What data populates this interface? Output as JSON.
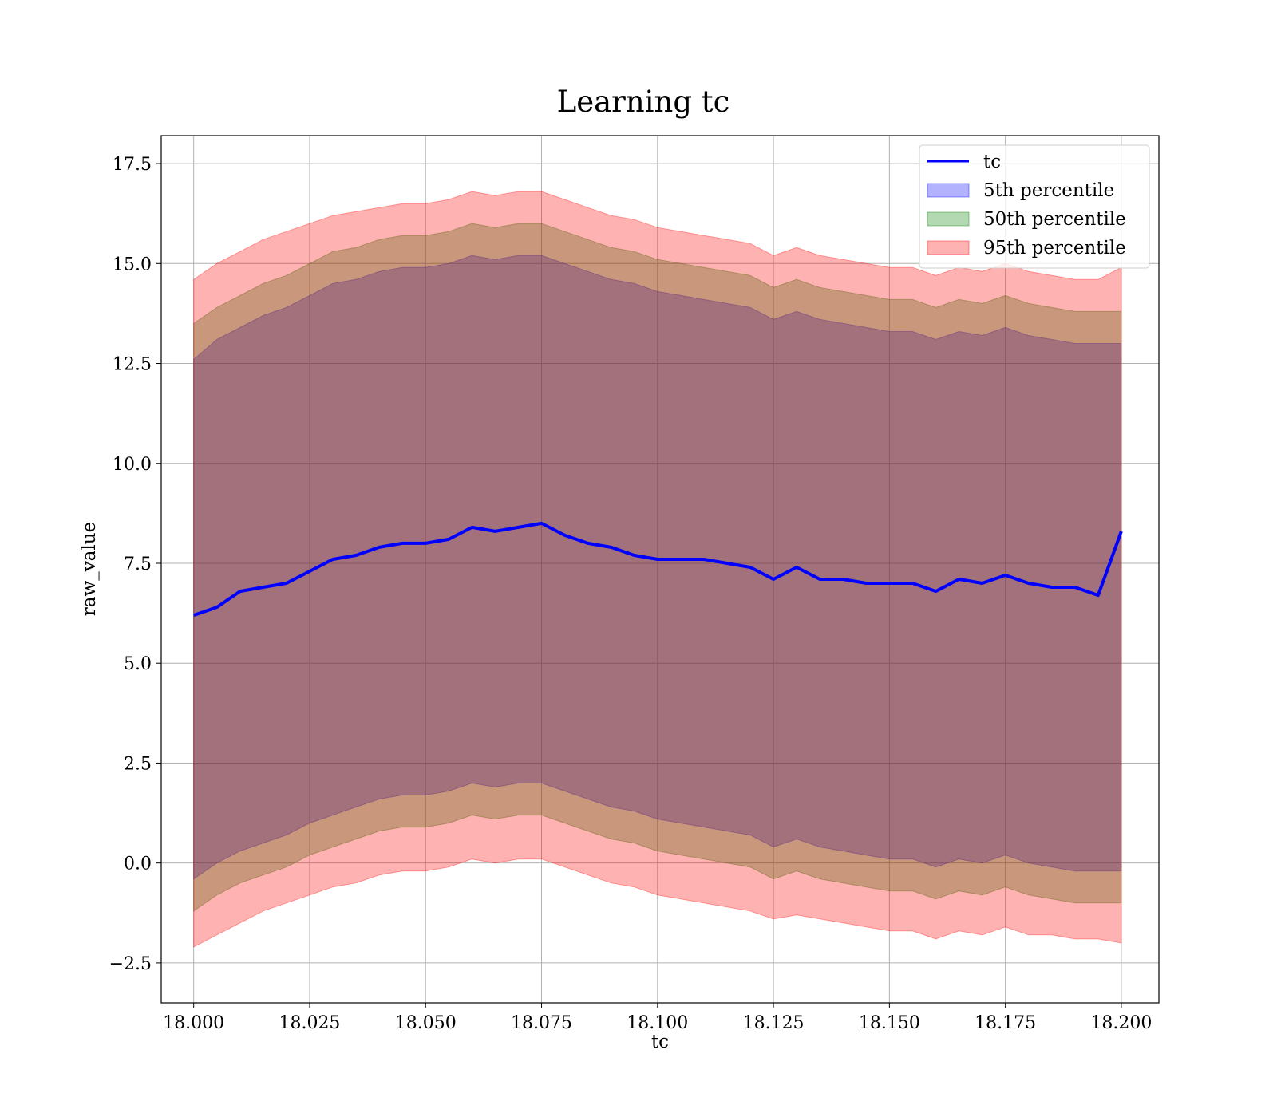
{
  "chart_data": {
    "type": "area",
    "title": "Learning tc",
    "xlabel": "tc",
    "ylabel": "raw_value",
    "xlim": [
      17.993,
      18.2081
    ],
    "ylim": [
      -3.5,
      18.2
    ],
    "xticks": [
      18.0,
      18.025,
      18.05,
      18.075,
      18.1,
      18.125,
      18.15,
      18.175,
      18.2
    ],
    "xtick_labels": [
      "18.000",
      "18.025",
      "18.050",
      "18.075",
      "18.100",
      "18.125",
      "18.150",
      "18.175",
      "18.200"
    ],
    "yticks": [
      -2.5,
      0.0,
      2.5,
      5.0,
      7.5,
      10.0,
      12.5,
      15.0,
      17.5
    ],
    "ytick_labels": [
      "−2.5",
      "0.0",
      "2.5",
      "5.0",
      "7.5",
      "10.0",
      "12.5",
      "15.0",
      "17.5"
    ],
    "grid": true,
    "legend_position": "top-right",
    "x": [
      18.0,
      18.005,
      18.01,
      18.015,
      18.02,
      18.025,
      18.03,
      18.035,
      18.04,
      18.045,
      18.05,
      18.055,
      18.06,
      18.065,
      18.07,
      18.075,
      18.08,
      18.085,
      18.09,
      18.095,
      18.1,
      18.105,
      18.11,
      18.115,
      18.12,
      18.125,
      18.13,
      18.135,
      18.14,
      18.145,
      18.15,
      18.155,
      18.16,
      18.165,
      18.17,
      18.175,
      18.18,
      18.185,
      18.19,
      18.195,
      18.2
    ],
    "series": [
      {
        "name": "tc",
        "kind": "line",
        "color": "#0000ff",
        "values": [
          6.2,
          6.4,
          6.8,
          6.9,
          7.0,
          7.3,
          7.6,
          7.7,
          7.9,
          8.0,
          8.0,
          8.1,
          8.4,
          8.3,
          8.4,
          8.5,
          8.2,
          8.0,
          7.9,
          7.7,
          7.6,
          7.6,
          7.6,
          7.5,
          7.4,
          7.1,
          7.4,
          7.1,
          7.1,
          7.0,
          7.0,
          7.0,
          6.8,
          7.1,
          7.0,
          7.2,
          7.0,
          6.9,
          6.9,
          6.7,
          8.3
        ]
      },
      {
        "name": "5th percentile",
        "kind": "band",
        "color": "#0000ff",
        "opacity": 0.3,
        "upper": [
          12.6,
          13.1,
          13.4,
          13.7,
          13.9,
          14.2,
          14.5,
          14.6,
          14.8,
          14.9,
          14.9,
          15.0,
          15.2,
          15.1,
          15.2,
          15.2,
          15.0,
          14.8,
          14.6,
          14.5,
          14.3,
          14.2,
          14.1,
          14.0,
          13.9,
          13.6,
          13.8,
          13.6,
          13.5,
          13.4,
          13.3,
          13.3,
          13.1,
          13.3,
          13.2,
          13.4,
          13.2,
          13.1,
          13.0,
          13.0,
          13.0
        ],
        "lower": [
          -0.4,
          0.0,
          0.3,
          0.5,
          0.7,
          1.0,
          1.2,
          1.4,
          1.6,
          1.7,
          1.7,
          1.8,
          2.0,
          1.9,
          2.0,
          2.0,
          1.8,
          1.6,
          1.4,
          1.3,
          1.1,
          1.0,
          0.9,
          0.8,
          0.7,
          0.4,
          0.6,
          0.4,
          0.3,
          0.2,
          0.1,
          0.1,
          -0.1,
          0.1,
          0.0,
          0.2,
          0.0,
          -0.1,
          -0.2,
          -0.2,
          -0.2
        ]
      },
      {
        "name": "50th percentile",
        "kind": "band",
        "color": "#008000",
        "opacity": 0.3,
        "upper": [
          13.5,
          13.9,
          14.2,
          14.5,
          14.7,
          15.0,
          15.3,
          15.4,
          15.6,
          15.7,
          15.7,
          15.8,
          16.0,
          15.9,
          16.0,
          16.0,
          15.8,
          15.6,
          15.4,
          15.3,
          15.1,
          15.0,
          14.9,
          14.8,
          14.7,
          14.4,
          14.6,
          14.4,
          14.3,
          14.2,
          14.1,
          14.1,
          13.9,
          14.1,
          14.0,
          14.2,
          14.0,
          13.9,
          13.8,
          13.8,
          13.8
        ],
        "lower": [
          -1.2,
          -0.8,
          -0.5,
          -0.3,
          -0.1,
          0.2,
          0.4,
          0.6,
          0.8,
          0.9,
          0.9,
          1.0,
          1.2,
          1.1,
          1.2,
          1.2,
          1.0,
          0.8,
          0.6,
          0.5,
          0.3,
          0.2,
          0.1,
          0.0,
          -0.1,
          -0.4,
          -0.2,
          -0.4,
          -0.5,
          -0.6,
          -0.7,
          -0.7,
          -0.9,
          -0.7,
          -0.8,
          -0.6,
          -0.8,
          -0.9,
          -1.0,
          -1.0,
          -1.0
        ]
      },
      {
        "name": "95th percentile",
        "kind": "band",
        "color": "#ff0000",
        "opacity": 0.3,
        "upper": [
          14.6,
          15.0,
          15.3,
          15.6,
          15.8,
          16.0,
          16.2,
          16.3,
          16.4,
          16.5,
          16.5,
          16.6,
          16.8,
          16.7,
          16.8,
          16.8,
          16.6,
          16.4,
          16.2,
          16.1,
          15.9,
          15.8,
          15.7,
          15.6,
          15.5,
          15.2,
          15.4,
          15.2,
          15.1,
          15.0,
          14.9,
          14.9,
          14.7,
          14.9,
          14.8,
          15.0,
          14.8,
          14.7,
          14.6,
          14.6,
          14.9
        ],
        "lower": [
          -2.1,
          -1.8,
          -1.5,
          -1.2,
          -1.0,
          -0.8,
          -0.6,
          -0.5,
          -0.3,
          -0.2,
          -0.2,
          -0.1,
          0.1,
          0.0,
          0.1,
          0.1,
          -0.1,
          -0.3,
          -0.5,
          -0.6,
          -0.8,
          -0.9,
          -1.0,
          -1.1,
          -1.2,
          -1.4,
          -1.3,
          -1.4,
          -1.5,
          -1.6,
          -1.7,
          -1.7,
          -1.9,
          -1.7,
          -1.8,
          -1.6,
          -1.8,
          -1.8,
          -1.9,
          -1.9,
          -2.0
        ]
      }
    ]
  }
}
